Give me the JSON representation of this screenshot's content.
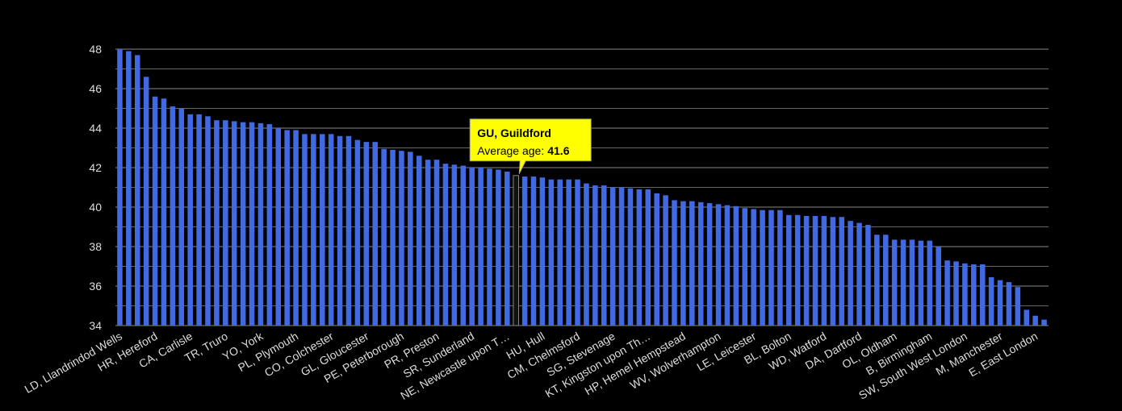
{
  "chart_data": {
    "type": "bar",
    "color": "#4169e1",
    "categories": [
      "LD, Llandrindod Wells",
      null,
      null,
      null,
      "HR, Hereford",
      null,
      null,
      null,
      "CA, Carlisle",
      null,
      null,
      null,
      "TR, Truro",
      null,
      null,
      null,
      "YO, York",
      null,
      null,
      null,
      "PL, Plymouth",
      null,
      null,
      null,
      "CO, Colchester",
      null,
      null,
      null,
      "GL, Gloucester",
      null,
      null,
      null,
      "PE, Peterborough",
      null,
      null,
      null,
      "PR, Preston",
      null,
      null,
      null,
      "SR, Sunderland",
      null,
      null,
      null,
      "NE, Newcastle upon T…",
      null,
      null,
      null,
      "HU, Hull",
      null,
      null,
      null,
      "CM, Chelmsford",
      null,
      null,
      null,
      "SG, Stevenage",
      null,
      null,
      null,
      "KT, Kingston upon Th…",
      null,
      null,
      null,
      "HP, Hemel Hempstead",
      null,
      null,
      null,
      "WV, Wolverhampton",
      null,
      null,
      null,
      "LE, Leicester",
      null,
      null,
      null,
      "BL, Bolton",
      null,
      null,
      null,
      "WD, Watford",
      null,
      null,
      null,
      "DA, Dartford",
      null,
      null,
      null,
      "OL, Oldham",
      null,
      null,
      null,
      "B, Birmingham",
      null,
      null,
      null,
      "SW, South West London",
      null,
      null,
      null,
      "M, Manchester",
      null,
      null,
      null,
      "E, East London",
      null
    ],
    "values": [
      48.0,
      47.9,
      47.7,
      46.6,
      45.6,
      45.5,
      45.1,
      45.0,
      44.7,
      44.7,
      44.6,
      44.4,
      44.4,
      44.35,
      44.3,
      44.3,
      44.25,
      44.2,
      44.0,
      43.9,
      43.9,
      43.7,
      43.7,
      43.7,
      43.7,
      43.6,
      43.6,
      43.4,
      43.3,
      43.3,
      42.95,
      42.9,
      42.85,
      42.8,
      42.6,
      42.4,
      42.4,
      42.2,
      42.15,
      42.1,
      42.0,
      42.0,
      41.95,
      41.9,
      41.8,
      41.6,
      41.55,
      41.55,
      41.5,
      41.4,
      41.4,
      41.4,
      41.4,
      41.2,
      41.1,
      41.1,
      41.0,
      41.0,
      40.95,
      40.9,
      40.9,
      40.7,
      40.6,
      40.35,
      40.3,
      40.3,
      40.25,
      40.2,
      40.15,
      40.1,
      40.05,
      39.95,
      39.9,
      39.85,
      39.85,
      39.85,
      39.6,
      39.6,
      39.55,
      39.55,
      39.55,
      39.5,
      39.5,
      39.3,
      39.2,
      39.1,
      38.6,
      38.6,
      38.35,
      38.35,
      38.35,
      38.3,
      38.3,
      38.0,
      37.3,
      37.25,
      37.15,
      37.1,
      37.1,
      36.45,
      36.3,
      36.2,
      35.95,
      34.8,
      34.5,
      34.3
    ],
    "ylim": [
      34,
      48
    ],
    "yticks": [
      34,
      36,
      38,
      40,
      42,
      44,
      46,
      48
    ],
    "minor_yticks": [
      35,
      37,
      39,
      41,
      43,
      45,
      47
    ],
    "grid": true,
    "tooltip": {
      "title": "GU, Guildford",
      "label": "Average age:",
      "value": 41.6
    }
  }
}
